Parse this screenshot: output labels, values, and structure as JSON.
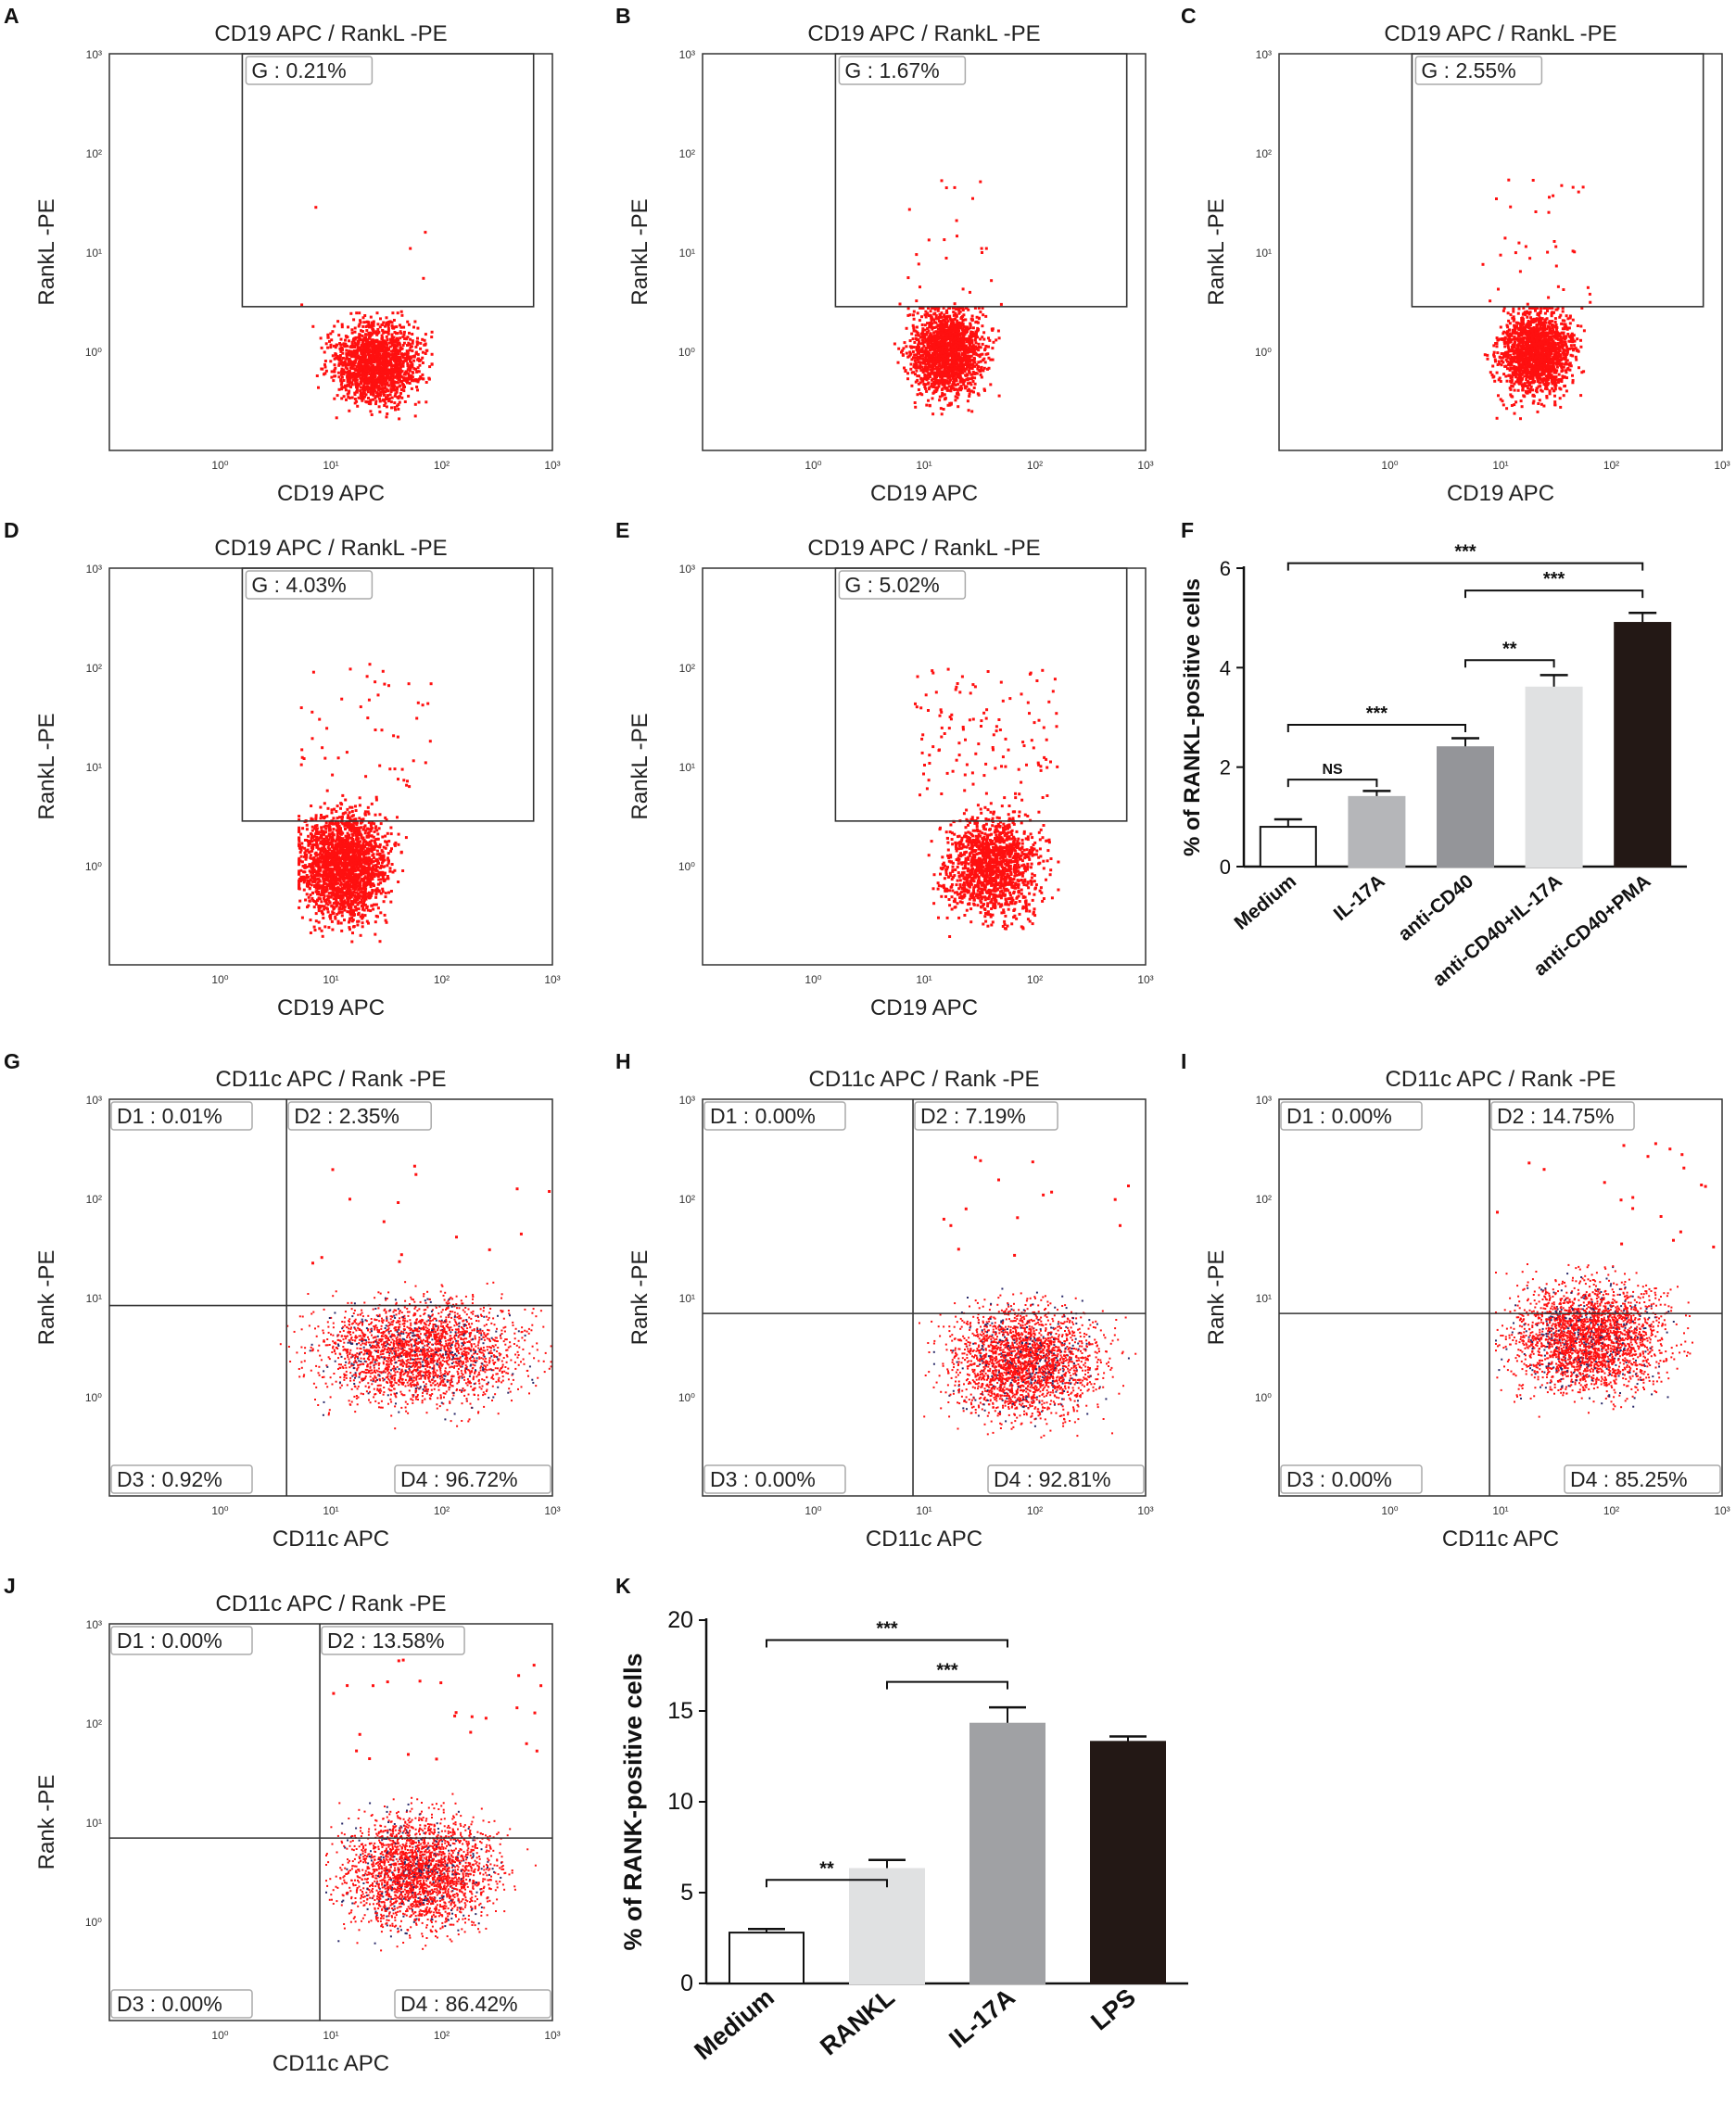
{
  "flow_ticks": [
    "10⁰",
    "10¹",
    "10²",
    "10³"
  ],
  "chart_data": [
    {
      "id": "A",
      "type": "scatter",
      "title": "CD19 APC / RankL -PE",
      "xlabel": "CD19 APC",
      "ylabel": "RankL -PE",
      "gates": [
        {
          "label": "G",
          "value": "0.21%"
        }
      ],
      "xlim": [
        0.1,
        1000
      ],
      "ylim": [
        0.1,
        1000
      ],
      "cloud": {
        "x_range": [
          0.7,
          1.9
        ],
        "y_range": [
          -1.0,
          0.4
        ],
        "peak_x": 1.4,
        "peak_y": -0.1,
        "n": 1600,
        "outliers": 6
      }
    },
    {
      "id": "B",
      "type": "scatter",
      "title": "CD19 APC / RankL -PE",
      "xlabel": "CD19 APC",
      "ylabel": "RankL -PE",
      "gates": [
        {
          "label": "G",
          "value": "1.67%"
        }
      ],
      "xlim": [
        0.1,
        1000
      ],
      "ylim": [
        0.1,
        1000
      ],
      "cloud": {
        "x_range": [
          0.7,
          1.7
        ],
        "y_range": [
          -1.0,
          0.45
        ],
        "peak_x": 1.2,
        "peak_y": 0.0,
        "n": 1700,
        "outliers": 25
      }
    },
    {
      "id": "C",
      "type": "scatter",
      "title": "CD19 APC / RankL -PE",
      "xlabel": "CD19 APC",
      "ylabel": "RankL -PE",
      "gates": [
        {
          "label": "G",
          "value": "2.55%"
        }
      ],
      "xlim": [
        0.1,
        1000
      ],
      "ylim": [
        0.1,
        1000
      ],
      "cloud": {
        "x_range": [
          0.8,
          1.8
        ],
        "y_range": [
          -1.0,
          0.45
        ],
        "peak_x": 1.3,
        "peak_y": 0.0,
        "n": 1700,
        "outliers": 35
      }
    },
    {
      "id": "D",
      "type": "scatter",
      "title": "CD19 APC / RankL -PE",
      "xlabel": "CD19 APC",
      "ylabel": "RankL -PE",
      "gates": [
        {
          "label": "G",
          "value": "4.03%"
        }
      ],
      "xlim": [
        0.1,
        1000
      ],
      "ylim": [
        0.1,
        1000
      ],
      "cloud": {
        "x_range": [
          0.7,
          1.9
        ],
        "y_range": [
          -1.0,
          0.8
        ],
        "peak_x": 1.1,
        "peak_y": 0.0,
        "n": 2000,
        "outliers": 50
      }
    },
    {
      "id": "E",
      "type": "scatter",
      "title": "CD19 APC / RankL -PE",
      "xlabel": "CD19 APC",
      "ylabel": "RankL -PE",
      "gates": [
        {
          "label": "G",
          "value": "5.02%"
        }
      ],
      "xlim": [
        0.1,
        1000
      ],
      "ylim": [
        0.1,
        1000
      ],
      "cloud": {
        "x_range": [
          0.9,
          2.2
        ],
        "y_range": [
          -1.0,
          0.7
        ],
        "peak_x": 1.6,
        "peak_y": 0.0,
        "n": 1400,
        "outliers": 120
      }
    },
    {
      "id": "F",
      "type": "bar",
      "title": "",
      "xlabel": "",
      "ylabel": "% of RANKL-positive cells",
      "categories": [
        "Medium",
        "IL-17A",
        "anti-CD40",
        "anti-CD40+IL-17A",
        "anti-CD40+PMA"
      ],
      "values": [
        0.8,
        1.4,
        2.4,
        3.6,
        4.9
      ],
      "errors": [
        0.15,
        0.12,
        0.18,
        0.25,
        0.2
      ],
      "colors": [
        "#ffffff",
        "#b5b6b9",
        "#949599",
        "#e0e1e2",
        "#231815"
      ],
      "ylim": [
        0,
        6
      ],
      "yticks": [
        "0",
        "2",
        "4",
        "6"
      ],
      "significance": [
        {
          "from": 0,
          "to": 1,
          "label": "NS"
        },
        {
          "from": 0,
          "to": 2,
          "label": "***"
        },
        {
          "from": 2,
          "to": 3,
          "label": "**"
        },
        {
          "from": 2,
          "to": 4,
          "label": "***"
        },
        {
          "from": 0,
          "to": 4,
          "label": "***"
        }
      ]
    },
    {
      "id": "G",
      "type": "scatter",
      "title": "CD11c APC / Rank -PE",
      "xlabel": "CD11c APC",
      "ylabel": "Rank -PE",
      "gates": [
        {
          "label": "D1",
          "value": "0.01%"
        },
        {
          "label": "D2",
          "value": "2.35%"
        },
        {
          "label": "D3",
          "value": "0.92%"
        },
        {
          "label": "D4",
          "value": "96.72%"
        }
      ],
      "xlim": [
        0.1,
        1000
      ],
      "ylim": [
        0.1,
        1000
      ],
      "cloud": {
        "x_range": [
          0.3,
          2.98
        ],
        "y_range": [
          -0.4,
          1.3
        ],
        "peak_x": 1.8,
        "peak_y": 0.45,
        "n": 2600,
        "outliers": 15
      }
    },
    {
      "id": "H",
      "type": "scatter",
      "title": "CD11c APC / Rank -PE",
      "xlabel": "CD11c APC",
      "ylabel": "Rank -PE",
      "gates": [
        {
          "label": "D1",
          "value": "0.00%"
        },
        {
          "label": "D2",
          "value": "7.19%"
        },
        {
          "label": "D3",
          "value": "0.00%"
        },
        {
          "label": "D4",
          "value": "92.81%"
        }
      ],
      "xlim": [
        0.1,
        1000
      ],
      "ylim": [
        0.1,
        1000
      ],
      "cloud": {
        "x_range": [
          0.95,
          2.98
        ],
        "y_range": [
          -0.4,
          1.4
        ],
        "peak_x": 1.9,
        "peak_y": 0.35,
        "n": 2600,
        "outliers": 15
      }
    },
    {
      "id": "I",
      "type": "scatter",
      "title": "CD11c APC / Rank -PE",
      "xlabel": "CD11c APC",
      "ylabel": "Rank -PE",
      "gates": [
        {
          "label": "D1",
          "value": "0.00%"
        },
        {
          "label": "D2",
          "value": "14.75%"
        },
        {
          "label": "D3",
          "value": "0.00%"
        },
        {
          "label": "D4",
          "value": "85.25%"
        }
      ],
      "xlim": [
        0.1,
        1000
      ],
      "ylim": [
        0.1,
        1000
      ],
      "cloud": {
        "x_range": [
          0.95,
          2.98
        ],
        "y_range": [
          -0.3,
          1.5
        ],
        "peak_x": 1.8,
        "peak_y": 0.6,
        "n": 2800,
        "outliers": 20
      }
    },
    {
      "id": "J",
      "type": "scatter",
      "title": "CD11c APC / Rank -PE",
      "xlabel": "CD11c APC",
      "ylabel": "Rank -PE",
      "gates": [
        {
          "label": "D1",
          "value": "0.00%"
        },
        {
          "label": "D2",
          "value": "13.58%"
        },
        {
          "label": "D3",
          "value": "0.00%"
        },
        {
          "label": "D4",
          "value": "86.42%"
        }
      ],
      "xlim": [
        0.1,
        1000
      ],
      "ylim": [
        0.1,
        1000
      ],
      "cloud": {
        "x_range": [
          0.95,
          2.98
        ],
        "y_range": [
          -0.3,
          1.6
        ],
        "peak_x": 1.8,
        "peak_y": 0.5,
        "n": 2700,
        "outliers": 25
      }
    },
    {
      "id": "K",
      "type": "bar",
      "title": "",
      "xlabel": "",
      "ylabel": "% of RANK-positive cells",
      "categories": [
        "Medium",
        "RANKL",
        "IL-17A",
        "LPS"
      ],
      "values": [
        2.8,
        6.3,
        14.3,
        13.3
      ],
      "errors": [
        0.2,
        0.5,
        0.9,
        0.3
      ],
      "colors": [
        "#ffffff",
        "#e0e1e2",
        "#a0a1a4",
        "#231815"
      ],
      "ylim": [
        0,
        20
      ],
      "yticks": [
        "0",
        "5",
        "10",
        "15",
        "20"
      ],
      "significance": [
        {
          "from": 0,
          "to": 1,
          "label": "**"
        },
        {
          "from": 1,
          "to": 2,
          "label": "***"
        },
        {
          "from": 0,
          "to": 2,
          "label": "***"
        }
      ]
    }
  ]
}
